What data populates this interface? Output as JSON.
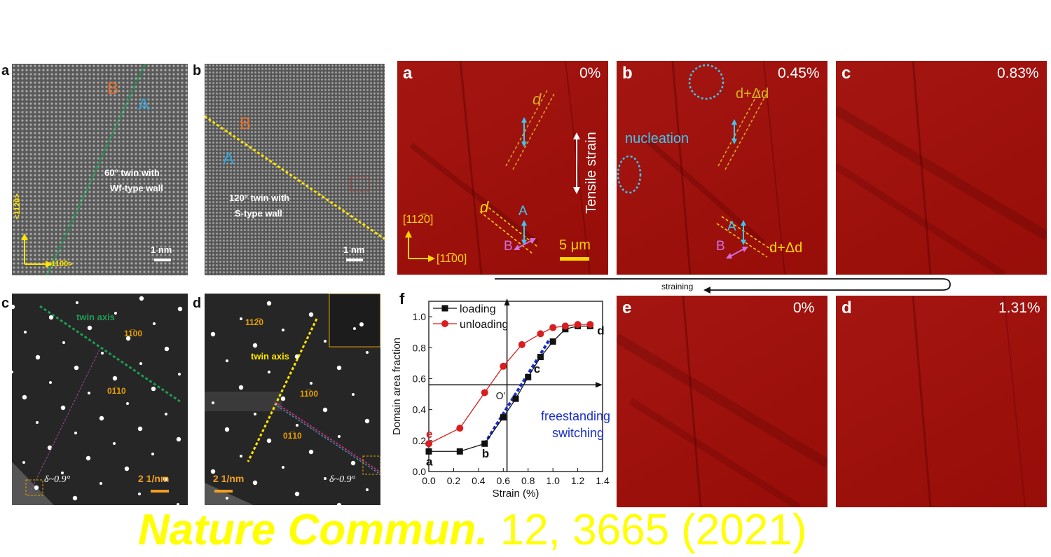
{
  "left_figure": {
    "panel_a": {
      "letter": "a",
      "label_B": "B",
      "label_A": "A",
      "caption_line1": "60° twin with",
      "caption_line2": "Wf-type wall",
      "axis_v": "<11̅2̅0>",
      "axis_h": "<11̅0̅0>",
      "scale": "1 nm"
    },
    "panel_b": {
      "letter": "b",
      "label_B": "B",
      "label_A": "A",
      "caption_line1": "120° twin with",
      "caption_line2": "S-type wall",
      "scale": "1 nm"
    },
    "panel_c": {
      "letter": "c",
      "twin_axis": "twin axis",
      "spot1": "11̅00",
      "spot2": "01̅10",
      "delta": "δ~0.9°",
      "scale": "2 1/nm"
    },
    "panel_d": {
      "letter": "d",
      "twin_axis": "twin axis",
      "spot1": "112̅0",
      "spot2": "11̅00",
      "spot3": "01̅10",
      "delta": "δ~0.9°",
      "scale": "2 1/nm"
    }
  },
  "right_figure": {
    "panel_a": {
      "letter": "a",
      "percent": "0%",
      "d_top": "d",
      "d_bottom": "d",
      "label_A": "A",
      "label_B": "B",
      "tensile": "Tensile strain",
      "axis_v": "[112̅0]",
      "axis_h": "[11̅00]",
      "scale": "5 μm"
    },
    "panel_b": {
      "letter": "b",
      "percent": "0.45%",
      "nucleation": "nucleation",
      "d_top": "d+Δd",
      "d_bottom": "d+Δd",
      "label_A": "A",
      "label_B": "B"
    },
    "panel_c": {
      "letter": "c",
      "percent": "0.83%"
    },
    "panel_e": {
      "letter": "e",
      "percent": "0%"
    },
    "panel_d": {
      "letter": "d",
      "percent": "1.31%"
    },
    "straining": "straining"
  },
  "chart_data": {
    "type": "line",
    "panel_letter": "f",
    "xlabel": "Strain (%)",
    "ylabel": "Domain area fraction",
    "xlim": [
      0.0,
      1.4
    ],
    "ylim": [
      0.0,
      1.1
    ],
    "xticks": [
      "0.0",
      "0.2",
      "0.4",
      "0.6",
      "0.8",
      "1.0",
      "1.2",
      "1.4"
    ],
    "yticks": [
      "0.0",
      "0.2",
      "0.4",
      "0.6",
      "0.8",
      "1.0"
    ],
    "legend_position": "top-left",
    "series": [
      {
        "name": "loading",
        "color": "#111111",
        "marker": "square",
        "x": [
          0.0,
          0.25,
          0.45,
          0.6,
          0.7,
          0.8,
          0.9,
          1.0,
          1.1,
          1.2,
          1.3
        ],
        "y": [
          0.13,
          0.13,
          0.18,
          0.35,
          0.47,
          0.61,
          0.74,
          0.84,
          0.92,
          0.94,
          0.94
        ]
      },
      {
        "name": "unloading",
        "color": "#d81e1e",
        "marker": "circle",
        "x": [
          0.0,
          0.25,
          0.45,
          0.6,
          0.75,
          0.9,
          1.0,
          1.1,
          1.2,
          1.3
        ],
        "y": [
          0.18,
          0.28,
          0.51,
          0.68,
          0.82,
          0.89,
          0.93,
          0.94,
          0.95,
          0.95
        ]
      }
    ],
    "point_labels": [
      {
        "text": "a",
        "x": 0.0,
        "y": 0.13,
        "color": "#111111"
      },
      {
        "text": "b",
        "x": 0.45,
        "y": 0.18,
        "color": "#111111"
      },
      {
        "text": "c",
        "x": 0.8,
        "y": 0.61,
        "color": "#111111"
      },
      {
        "text": "d",
        "x": 1.3,
        "y": 0.94,
        "color": "#111111"
      },
      {
        "text": "e",
        "x": 0.0,
        "y": 0.18,
        "color": "#d81e1e"
      }
    ],
    "origin_label": "O'",
    "origin_x": 0.63,
    "origin_y": 0.56,
    "fit_line": {
      "x": [
        0.45,
        0.97
      ],
      "y": [
        0.18,
        0.85
      ],
      "color": "#1a2dc8"
    },
    "annotation_line1": "freestanding",
    "annotation_line2": "switching"
  },
  "citation": {
    "journal": "Nature Commun.",
    "details": " 12, 3665 (2021)",
    "color": "#ffff00"
  }
}
